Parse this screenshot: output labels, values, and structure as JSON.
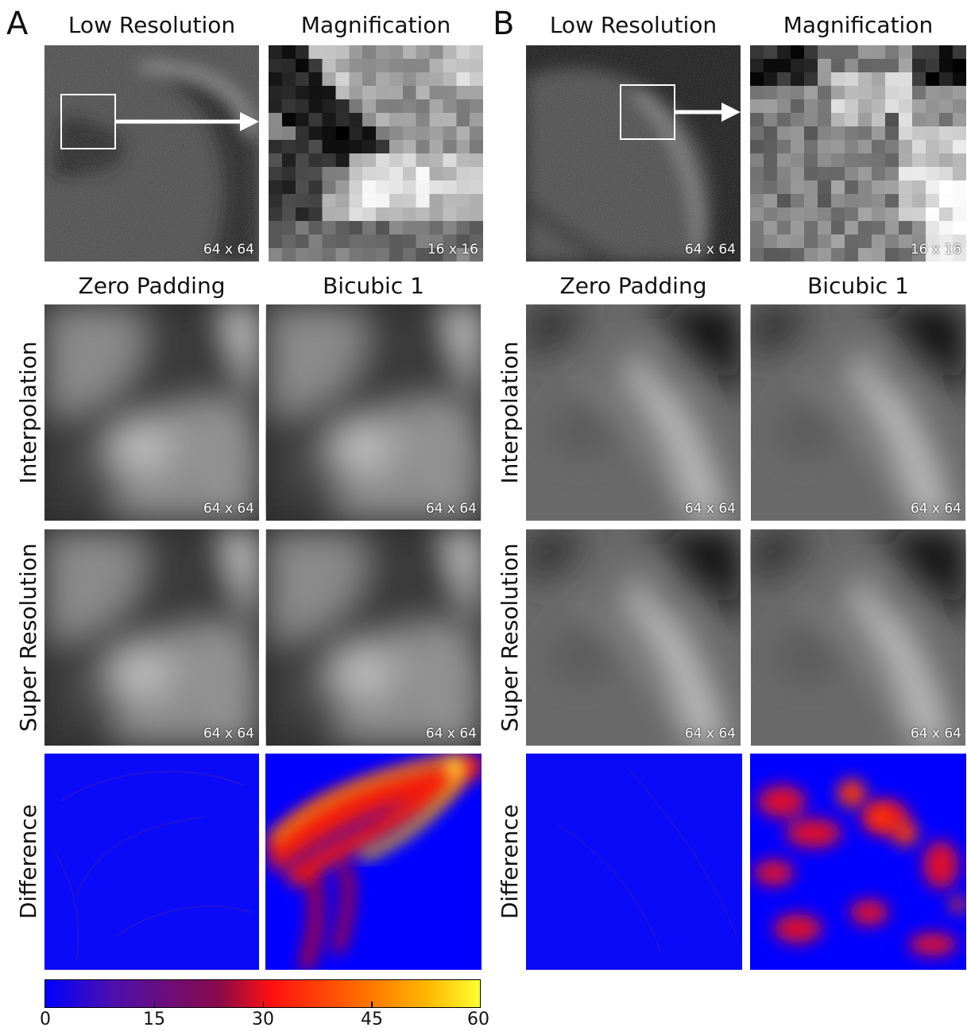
{
  "panels": {
    "A": {
      "letter": "A"
    },
    "B": {
      "letter": "B"
    }
  },
  "column_titles": {
    "low_resolution": "Low Resolution",
    "magnification": "Magnification",
    "zero_padding": "Zero Padding",
    "bicubic": "Bicubic 1"
  },
  "row_labels": {
    "interpolation": "Interpolation",
    "super_resolution": "Super Resolution",
    "difference": "Difference"
  },
  "size_labels": {
    "s64": "64 x 64",
    "s16": "16 x 16"
  },
  "colorbar": {
    "ticks": [
      "0",
      "15",
      "30",
      "45",
      "60"
    ],
    "colormap": "blue-purple-red-yellow"
  },
  "colors": {
    "difference_low": "#0000ff",
    "difference_high": "#ffff30"
  }
}
